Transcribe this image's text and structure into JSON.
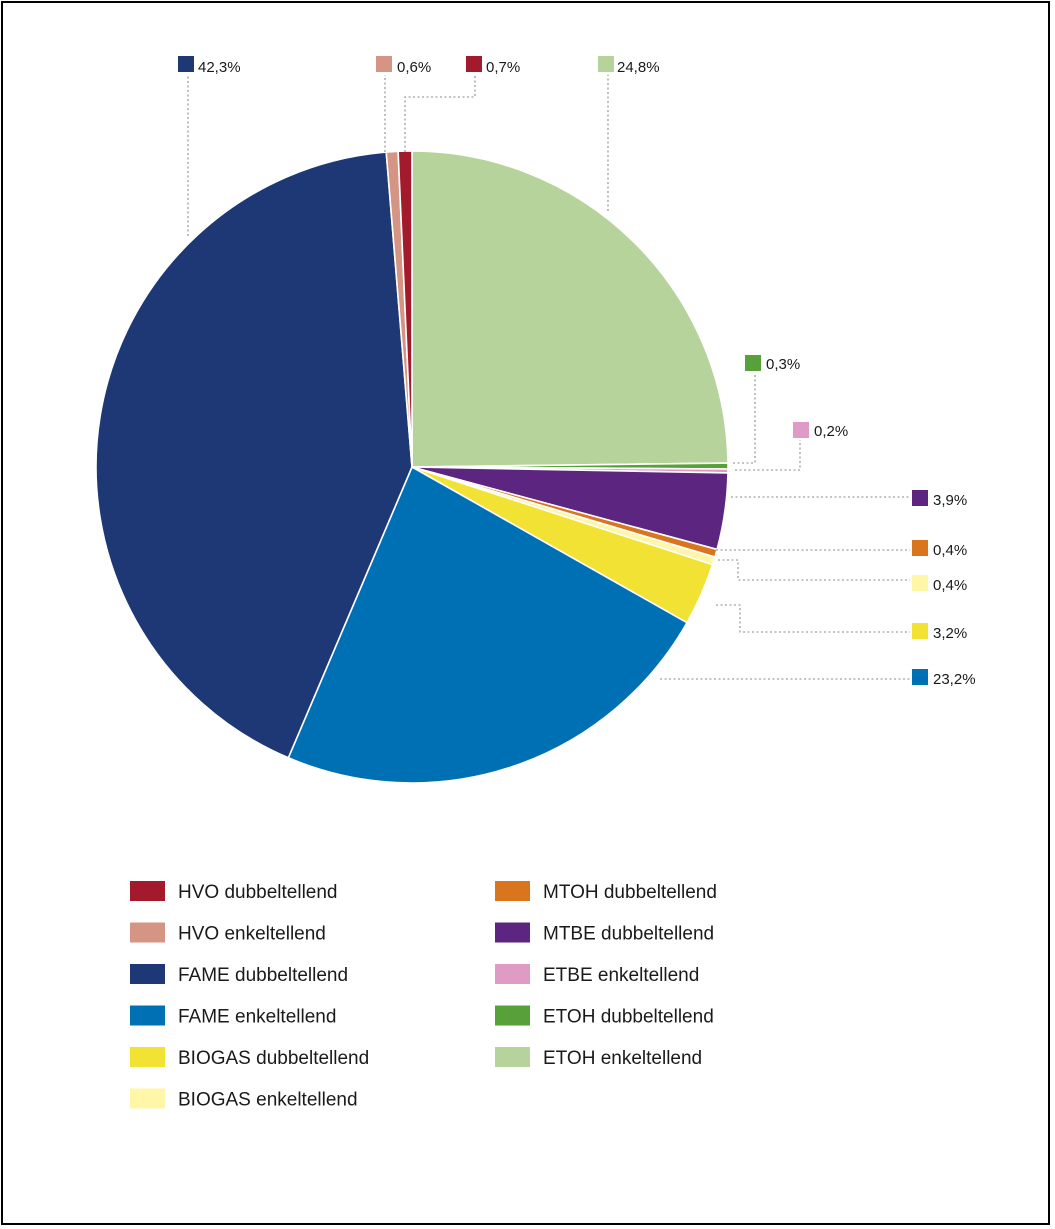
{
  "chart_data": {
    "type": "pie",
    "title": "",
    "start": "12 o'clock, clockwise",
    "slices": [
      {
        "label": "ETOH enkeltellend",
        "value": 24.8,
        "text": "24,8%",
        "color": "#b6d39c"
      },
      {
        "label": "ETOH dubbeltellend",
        "value": 0.3,
        "text": "0,3%",
        "color": "#58a03a"
      },
      {
        "label": "ETBE enkeltellend",
        "value": 0.2,
        "text": "0,2%",
        "color": "#e09bc4"
      },
      {
        "label": "MTBE dubbeltellend",
        "value": 3.9,
        "text": "3,9%",
        "color": "#5c2580"
      },
      {
        "label": "MTOH dubbeltellend",
        "value": 0.4,
        "text": "0,4%",
        "color": "#d9751c"
      },
      {
        "label": "BIOGAS enkeltellend",
        "value": 0.4,
        "text": "0,4%",
        "color": "#fff6a8"
      },
      {
        "label": "BIOGAS dubbeltellend",
        "value": 3.2,
        "text": "3,2%",
        "color": "#f2e234"
      },
      {
        "label": "FAME enkeltellend",
        "value": 23.2,
        "text": "23,2%",
        "color": "#0070b5"
      },
      {
        "label": "FAME dubbeltellend",
        "value": 42.3,
        "text": "42,3%",
        "color": "#1d3874"
      },
      {
        "label": "HVO enkeltellend",
        "value": 0.6,
        "text": "0,6%",
        "color": "#d49585"
      },
      {
        "label": "HVO dubbeltellend",
        "value": 0.7,
        "text": "0,7%",
        "color": "#a31a2c"
      }
    ],
    "legend": {
      "placement": "bottom",
      "left_column": [
        "HVO dubbeltellend",
        "HVO enkeltellend",
        "FAME dubbeltellend",
        "FAME enkeltellend",
        "BIOGAS dubbeltellend",
        "BIOGAS enkeltellend"
      ],
      "right_column": [
        "MTOH dubbeltellend",
        "MTBE dubbeltellend",
        "ETBE enkeltellend",
        "ETOH dubbeltellend",
        "ETOH enkeltellend"
      ]
    }
  }
}
